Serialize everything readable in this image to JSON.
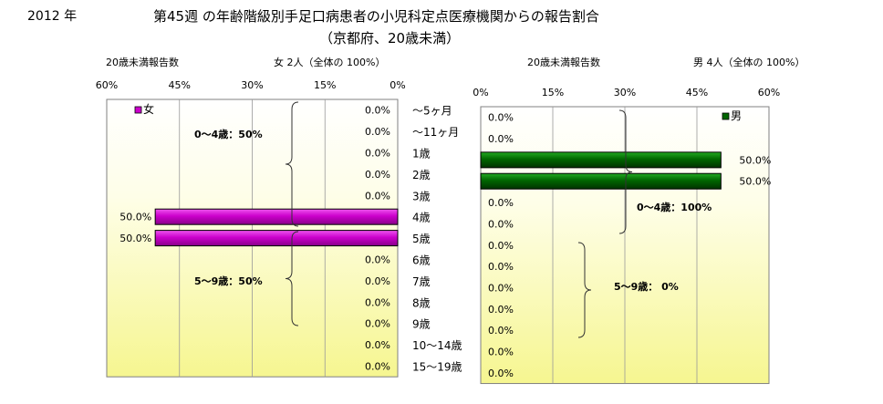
{
  "header": {
    "year": "2012 年",
    "title": "第45週 の年齢階級別手足口病患者の小児科定点医療機関からの報告割合",
    "subtitle": "（京都府、20歳未満）"
  },
  "age_groups": [
    "～5ヶ月",
    "～11ヶ月",
    "1歳",
    "2歳",
    "3歳",
    "4歳",
    "5歳",
    "6歳",
    "7歳",
    "8歳",
    "9歳",
    "10～14歳",
    "15～19歳"
  ],
  "chart_data": [
    {
      "type": "bar",
      "orientation": "horizontal",
      "direction": "reversed",
      "count_label": "20歳未満報告数",
      "count_text": "女  2人（全体の  100%）",
      "categories": [
        "～5ヶ月",
        "～11ヶ月",
        "1歳",
        "2歳",
        "3歳",
        "4歳",
        "5歳",
        "6歳",
        "7歳",
        "8歳",
        "9歳",
        "10～14歳",
        "15～19歳"
      ],
      "series": [
        {
          "name": "女",
          "values": [
            0,
            0,
            0,
            0,
            0,
            50,
            50,
            0,
            0,
            0,
            0,
            0,
            0
          ]
        }
      ],
      "data_labels": [
        "0.0%",
        "0.0%",
        "0.0%",
        "0.0%",
        "0.0%",
        "50.0%",
        "50.0%",
        "0.0%",
        "0.0%",
        "0.0%",
        "0.0%",
        "0.0%",
        "0.0%"
      ],
      "xlim": [
        0,
        60
      ],
      "x_ticks": [
        "60%",
        "45%",
        "30%",
        "15%",
        "0%"
      ],
      "legend": "top-left",
      "grid": true,
      "color": "#cc00cc",
      "annotations": [
        "0～4歳：50%",
        "5～9歳：50%"
      ]
    },
    {
      "type": "bar",
      "orientation": "horizontal",
      "count_label": "20歳未満報告数",
      "count_text": "男  4人（全体の  100%）",
      "categories": [
        "～5ヶ月",
        "～11ヶ月",
        "1歳",
        "2歳",
        "3歳",
        "4歳",
        "5歳",
        "6歳",
        "7歳",
        "8歳",
        "9歳",
        "10～14歳",
        "15～19歳"
      ],
      "series": [
        {
          "name": "男",
          "values": [
            0,
            0,
            50,
            50,
            0,
            0,
            0,
            0,
            0,
            0,
            0,
            0,
            0
          ]
        }
      ],
      "data_labels": [
        "0.0%",
        "0.0%",
        "50.0%",
        "50.0%",
        "0.0%",
        "0.0%",
        "0.0%",
        "0.0%",
        "0.0%",
        "0.0%",
        "0.0%",
        "0.0%",
        "0.0%"
      ],
      "xlim": [
        0,
        60
      ],
      "x_ticks": [
        "0%",
        "15%",
        "30%",
        "45%",
        "60%"
      ],
      "legend": "top-right",
      "grid": true,
      "color": "#006600",
      "annotations": [
        "0～4歳：100%",
        "5～9歳：  0%"
      ]
    }
  ]
}
